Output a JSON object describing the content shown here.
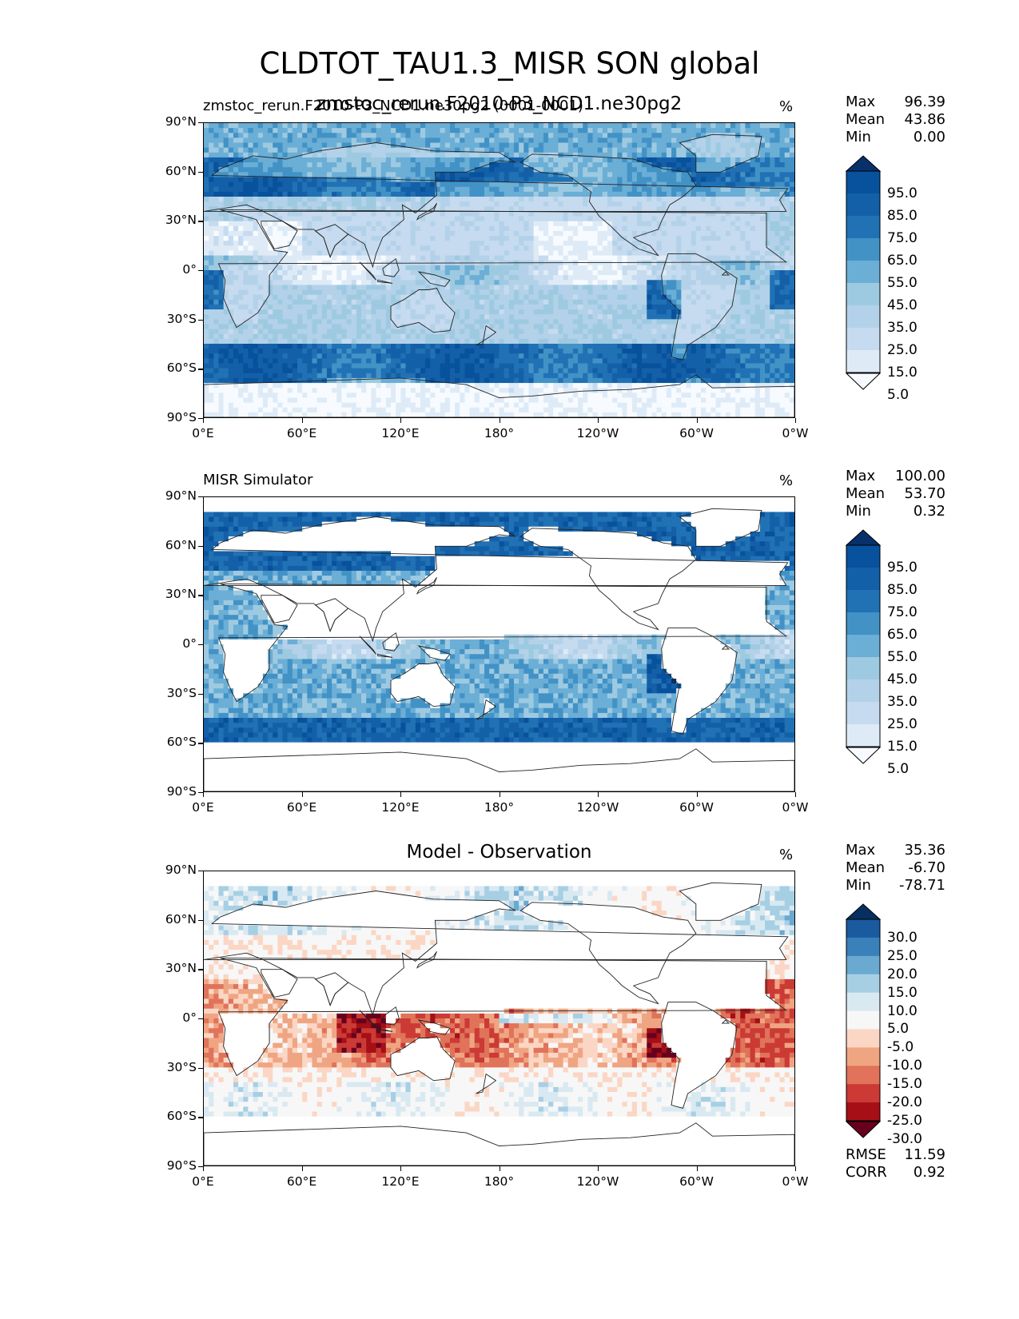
{
  "title": "CLDTOT_TAU1.3_MISR SON global",
  "panels": [
    {
      "left_label": "zmstoc_rerun.F2010-P3_NCD1.ne30pg2 (0001-0001)",
      "center_title": "zmstoc_rerun.F2010-P3_NCD1.ne30pg2",
      "units": "%",
      "stats": [
        {
          "label": "Max",
          "value": "96.39"
        },
        {
          "label": "Mean",
          "value": "43.86"
        },
        {
          "label": "Min",
          "value": "0.00"
        }
      ],
      "colorbar": {
        "type": "sequential",
        "colors": [
          "#f7fbff",
          "#deebf7",
          "#c6dbef",
          "#b3d2e9",
          "#9ecae1",
          "#6baed6",
          "#4292c6",
          "#2171b5",
          "#1460a8",
          "#08519c",
          "#08306b"
        ],
        "labels": [
          "95.0",
          "85.0",
          "75.0",
          "65.0",
          "55.0",
          "45.0",
          "35.0",
          "25.0",
          "15.0",
          "5.0"
        ]
      }
    },
    {
      "left_label": "MISR Simulator",
      "center_title": "",
      "units": "%",
      "stats": [
        {
          "label": "Max",
          "value": "100.00"
        },
        {
          "label": "Mean",
          "value": "53.70"
        },
        {
          "label": "Min",
          "value": "0.32"
        }
      ],
      "colorbar": {
        "type": "sequential",
        "colors": [
          "#f7fbff",
          "#deebf7",
          "#c6dbef",
          "#b3d2e9",
          "#9ecae1",
          "#6baed6",
          "#4292c6",
          "#2171b5",
          "#1460a8",
          "#08519c",
          "#08306b"
        ],
        "labels": [
          "95.0",
          "85.0",
          "75.0",
          "65.0",
          "55.0",
          "45.0",
          "35.0",
          "25.0",
          "15.0",
          "5.0"
        ]
      }
    },
    {
      "left_label": "",
      "center_title": "Model - Observation",
      "units": "%",
      "stats": [
        {
          "label": "Max",
          "value": "35.36"
        },
        {
          "label": "Mean",
          "value": "-6.70"
        },
        {
          "label": "Min",
          "value": "-78.71"
        }
      ],
      "extra_stats": [
        {
          "label": "RMSE",
          "value": "11.59"
        },
        {
          "label": "CORR",
          "value": "0.92"
        }
      ],
      "colorbar": {
        "type": "diverging",
        "colors": [
          "#67001f",
          "#a50f15",
          "#cb3a35",
          "#e0735a",
          "#f0a582",
          "#fbd6c4",
          "#f7f7f7",
          "#d9e9f2",
          "#a7cfe4",
          "#6aa9d0",
          "#3a80b9",
          "#1a5a9e",
          "#053061"
        ],
        "labels": [
          "30.0",
          "25.0",
          "20.0",
          "15.0",
          "10.0",
          "5.0",
          "-5.0",
          "-10.0",
          "-15.0",
          "-20.0",
          "-25.0",
          "-30.0"
        ]
      }
    }
  ],
  "axes": {
    "y_ticks": [
      "90°N",
      "60°N",
      "30°N",
      "0°",
      "30°S",
      "60°S",
      "90°S"
    ],
    "x_ticks": [
      "0°E",
      "60°E",
      "120°E",
      "180°",
      "120°W",
      "60°W",
      "0°W"
    ]
  },
  "map_data": {
    "type": "filled-contour-map",
    "projection": "PlateCarree",
    "central_longitude": 180,
    "lat_range": [
      -90,
      90
    ],
    "lon_range": [
      0,
      360
    ]
  }
}
